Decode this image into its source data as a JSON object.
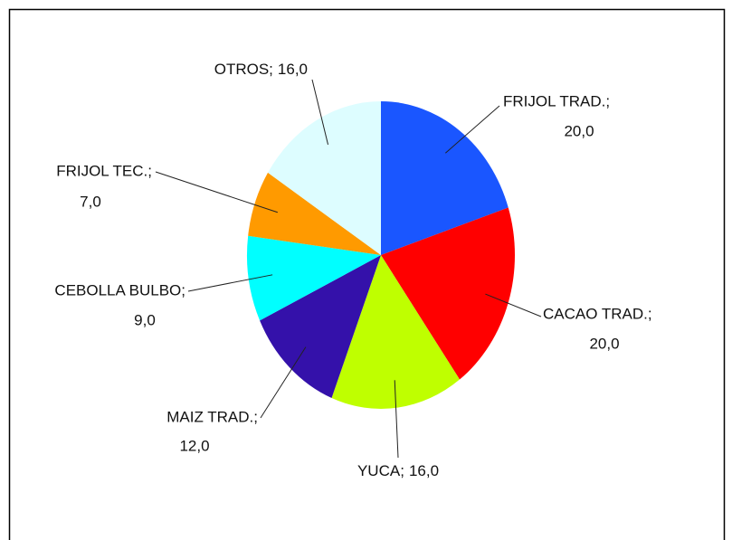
{
  "chart_data": {
    "type": "pie",
    "categories": [
      "FRIJOL TRAD.;",
      "CACAO TRAD.;",
      "YUCA;",
      "MAIZ TRAD.;",
      "CEBOLLA BULBO;",
      "FRIJOL TEC.;",
      "OTROS;"
    ],
    "values": [
      20,
      20,
      16,
      12,
      9,
      7,
      16
    ],
    "value_labels": [
      "20,0",
      "20,0",
      "16,0",
      "12,0",
      "9,0",
      "7,0",
      "16,0"
    ],
    "colors": [
      "#1a56ff",
      "#ff0000",
      "#bfff00",
      "#3411aa",
      "#00ffff",
      "#ff9a00",
      "#ddfdff"
    ]
  }
}
